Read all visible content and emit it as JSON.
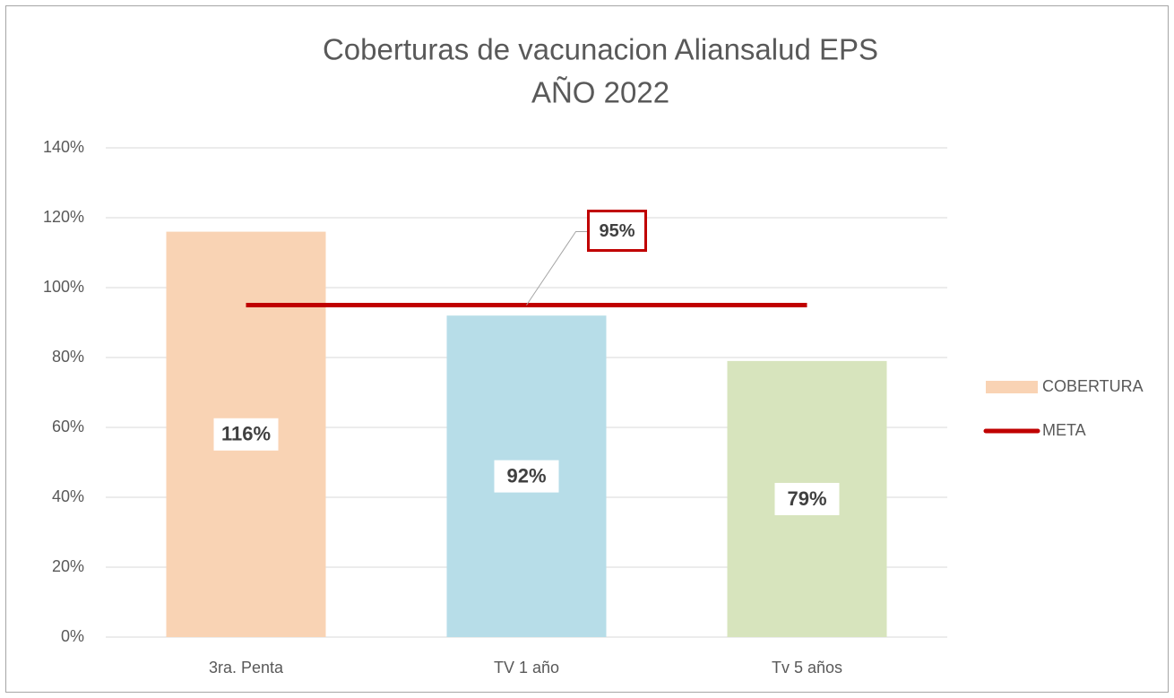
{
  "chart_data": {
    "type": "bar",
    "title": [
      "Coberturas de vacunacion Aliansalud EPS",
      "AÑO 2022"
    ],
    "categories": [
      "3ra. Penta",
      "TV 1 año",
      "Tv 5 años"
    ],
    "series": [
      {
        "name": "COBERTURA",
        "type": "bar",
        "color": "#f9d3b4",
        "colors": [
          "#f9d3b4",
          "#b7dde8",
          "#d7e4bd"
        ],
        "values": [
          116,
          92,
          79
        ],
        "value_labels": [
          "116%",
          "92%",
          "79%"
        ]
      },
      {
        "name": "META",
        "type": "line",
        "color": "#c00000",
        "values": [
          95,
          95,
          95
        ],
        "value_labels": [
          null,
          "95%",
          null
        ]
      }
    ],
    "ylim": [
      0,
      140
    ],
    "yticks": [
      {
        "value": 0,
        "label": "0%"
      },
      {
        "value": 20,
        "label": "20%"
      },
      {
        "value": 40,
        "label": "40%"
      },
      {
        "value": 60,
        "label": "60%"
      },
      {
        "value": 80,
        "label": "80%"
      },
      {
        "value": 100,
        "label": "100%"
      },
      {
        "value": 120,
        "label": "120%"
      },
      {
        "value": 140,
        "label": "140%"
      }
    ],
    "grid": true,
    "legend": "right"
  }
}
